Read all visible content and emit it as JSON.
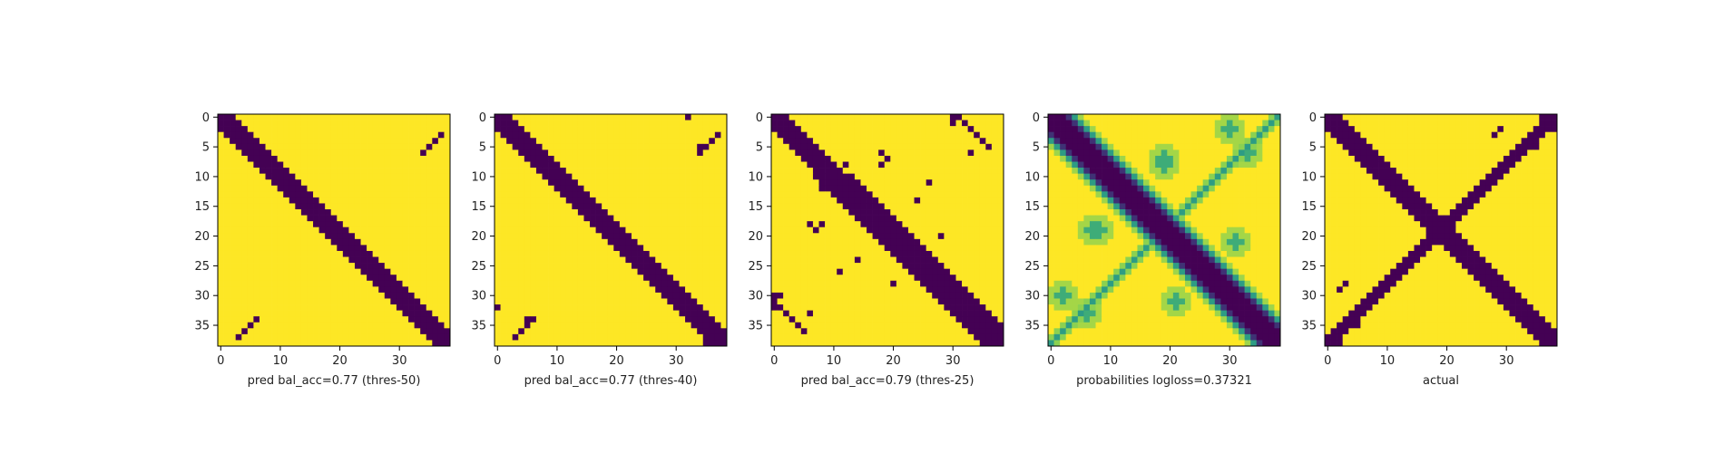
{
  "chart_data": [
    {
      "type": "heatmap",
      "xlabel": "pred bal_acc=0.77 (thres-50)",
      "x_ticks": [
        0,
        10,
        20,
        30
      ],
      "y_ticks": [
        0,
        5,
        10,
        15,
        20,
        25,
        30,
        35
      ],
      "grid_size": 39,
      "pattern": "band",
      "width_start": 4,
      "width_mid": 5,
      "width_end": 5,
      "extras": [
        [
          34,
          6
        ],
        [
          35,
          5
        ],
        [
          36,
          4
        ],
        [
          37,
          3
        ],
        [
          6,
          34
        ],
        [
          5,
          35
        ],
        [
          4,
          36
        ],
        [
          3,
          37
        ]
      ],
      "colors": [
        "#440154",
        "#fde725"
      ]
    },
    {
      "type": "heatmap",
      "xlabel": "pred bal_acc=0.77 (thres-40)",
      "x_ticks": [
        0,
        10,
        20,
        30
      ],
      "y_ticks": [
        0,
        5,
        10,
        15,
        20,
        25,
        30,
        35
      ],
      "grid_size": 39,
      "pattern": "band",
      "width_start": 5,
      "width_mid": 5,
      "width_end": 6,
      "extras": [
        [
          32,
          0
        ],
        [
          34,
          5
        ],
        [
          34,
          6
        ],
        [
          35,
          5
        ],
        [
          36,
          4
        ],
        [
          37,
          3
        ],
        [
          0,
          32
        ],
        [
          5,
          34
        ],
        [
          6,
          34
        ],
        [
          5,
          35
        ],
        [
          4,
          36
        ],
        [
          3,
          37
        ]
      ],
      "colors": [
        "#440154",
        "#fde725"
      ]
    },
    {
      "type": "heatmap",
      "xlabel": "pred bal_acc=0.79 (thres-25)",
      "x_ticks": [
        0,
        10,
        20,
        30
      ],
      "y_ticks": [
        0,
        5,
        10,
        15,
        20,
        25,
        30,
        35
      ],
      "grid_size": 39,
      "pattern": "band",
      "width_start": 5,
      "width_mid": 7,
      "width_end": 7,
      "extras": [
        [
          30,
          0
        ],
        [
          31,
          0
        ],
        [
          30,
          1
        ],
        [
          32,
          1
        ],
        [
          33,
          2
        ],
        [
          34,
          3
        ],
        [
          35,
          4
        ],
        [
          36,
          5
        ],
        [
          32,
          0
        ],
        [
          0,
          30
        ],
        [
          0,
          31
        ],
        [
          1,
          30
        ],
        [
          1,
          32
        ],
        [
          2,
          33
        ],
        [
          3,
          34
        ],
        [
          4,
          35
        ],
        [
          5,
          36
        ],
        [
          18,
          6
        ],
        [
          19,
          7
        ],
        [
          18,
          8
        ],
        [
          6,
          18
        ],
        [
          7,
          19
        ],
        [
          8,
          18
        ],
        [
          26,
          11
        ],
        [
          24,
          14
        ],
        [
          11,
          26
        ],
        [
          14,
          24
        ],
        [
          12,
          8
        ],
        [
          8,
          12
        ],
        [
          28,
          20
        ],
        [
          20,
          28
        ],
        [
          33,
          6
        ],
        [
          6,
          33
        ]
      ],
      "colors": [
        "#440154",
        "#fde725"
      ]
    },
    {
      "type": "heatmap",
      "xlabel": "probabilities logloss=0.37321",
      "x_ticks": [
        0,
        10,
        20,
        30
      ],
      "y_ticks": [
        0,
        5,
        10,
        15,
        20,
        25,
        30,
        35
      ],
      "grid_size": 39,
      "pattern": "probability",
      "colors": [
        "#440154",
        "#3b528b",
        "#21918c",
        "#5ec962",
        "#fde725"
      ]
    },
    {
      "type": "heatmap",
      "xlabel": "actual",
      "x_ticks": [
        0,
        10,
        20,
        30
      ],
      "y_ticks": [
        0,
        5,
        10,
        15,
        20,
        25,
        30,
        35
      ],
      "grid_size": 39,
      "pattern": "x",
      "width_start": 5,
      "width_mid": 4,
      "width_end": 4,
      "extras": [
        [
          28,
          3
        ],
        [
          29,
          2
        ],
        [
          3,
          28
        ],
        [
          2,
          29
        ],
        [
          24,
          13
        ],
        [
          24,
          14
        ],
        [
          13,
          24
        ],
        [
          14,
          24
        ],
        [
          35,
          5
        ],
        [
          5,
          35
        ],
        [
          38,
          2
        ],
        [
          2,
          38
        ]
      ],
      "colors": [
        "#440154",
        "#fde725"
      ]
    }
  ]
}
